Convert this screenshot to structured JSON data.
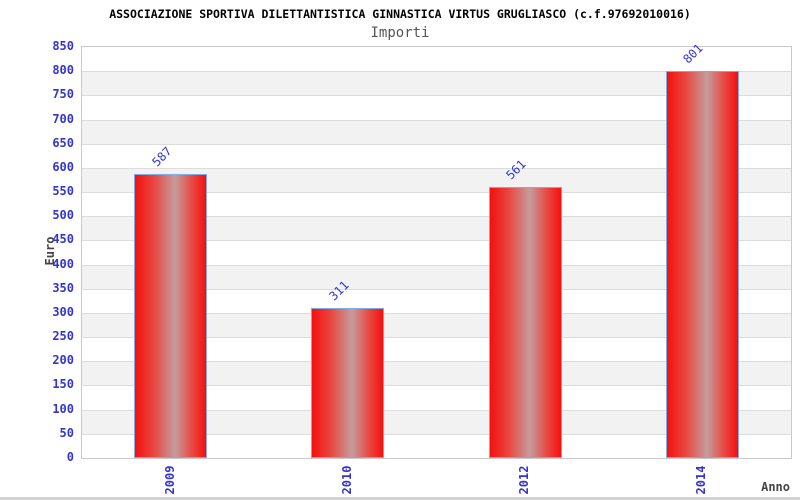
{
  "chart_data": {
    "type": "bar",
    "title": "ASSOCIAZIONE SPORTIVA DILETTANTISTICA GINNASTICA VIRTUS GRUGLIASCO (c.f.97692010016)",
    "subtitle": "Importi",
    "xlabel": "Anno",
    "ylabel": "Euro",
    "categories": [
      "2009",
      "2010",
      "2012",
      "2014"
    ],
    "values": [
      587,
      311,
      561,
      801
    ],
    "ylim": [
      0,
      850
    ],
    "ytick_step": 50,
    "grid": "horizontal gridlines every 50 with alternating white/gray bands",
    "legend": "none",
    "bar_label_rotation_deg": -45,
    "xtick_rotation_deg": -90,
    "colors": {
      "bar_red": "#f5100e",
      "bar_mid": "#e84a44",
      "bar_highlight": "#c49c9c",
      "bar_border": "#7fabe6",
      "tick_label_blue": "#3434d2",
      "value_label_blue": "#3434d2",
      "band_gray": "#f2f2f2",
      "gridline": "#dcdcdc",
      "plot_border": "#c9c9c9",
      "title_color": "#000000",
      "subtitle_color": "#555555",
      "axis_title_color": "#444444",
      "background": "#ffffff",
      "bottom_edge_gray": "#d2d2d2"
    }
  }
}
